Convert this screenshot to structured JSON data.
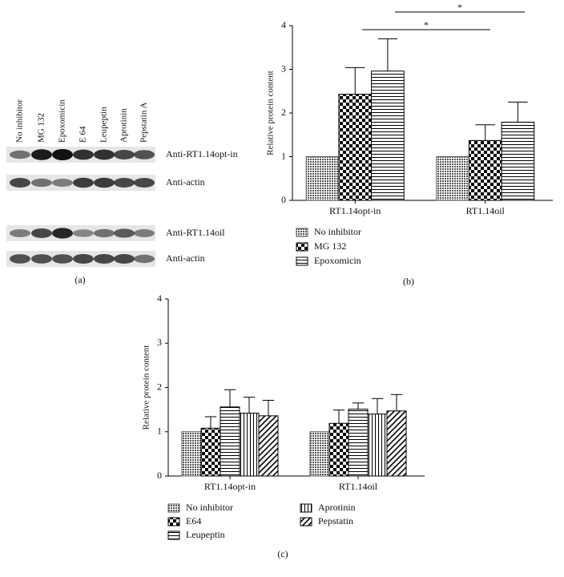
{
  "blot": {
    "lanes": [
      "No inhibitor",
      "MG 132",
      "Epoxomicin",
      "E 64",
      "Leupeptin",
      "Aprotinin",
      "Pepstatin A"
    ],
    "rows": [
      "Anti-RT1.14opt-in",
      "Anti-actin",
      "Anti-RT1.14oil",
      "Anti-actin"
    ],
    "caption": "(a)"
  },
  "chart_data": [
    {
      "type": "bar",
      "ylabel": "Relative protein content",
      "categories": [
        "RT1.14opt-in",
        "RT1.14oil"
      ],
      "series": [
        {
          "name": "No inhibitor",
          "color": "#555555",
          "pattern": "crosshatch",
          "values": [
            1.0,
            1.0
          ],
          "errors": [
            0,
            0
          ]
        },
        {
          "name": "MG 132",
          "color": "#000000",
          "pattern": "checker",
          "values": [
            2.43,
            1.37
          ],
          "errors": [
            0.61,
            0.36
          ]
        },
        {
          "name": "Epoxomicin",
          "color": "#000000",
          "pattern": "horizontal",
          "values": [
            2.96,
            1.79
          ],
          "errors": [
            0.74,
            0.46
          ]
        }
      ],
      "ylim": [
        0,
        4
      ],
      "yticks": [
        0,
        1,
        2,
        3,
        4
      ],
      "annotations": [
        {
          "label": "*"
        },
        {
          "label": "*"
        }
      ],
      "caption": "(b)"
    },
    {
      "type": "bar",
      "ylabel": "Relative protein content",
      "categories": [
        "RT1.14opt-in",
        "RT1.14oil"
      ],
      "series": [
        {
          "name": "No inhibitor",
          "color": "#555555",
          "pattern": "crosshatch",
          "values": [
            1.0,
            1.0
          ],
          "errors": [
            0,
            0
          ]
        },
        {
          "name": "E64",
          "color": "#000000",
          "pattern": "checker",
          "values": [
            1.08,
            1.19
          ],
          "errors": [
            0.26,
            0.3
          ]
        },
        {
          "name": "Leupeptin",
          "color": "#000000",
          "pattern": "horizontal",
          "values": [
            1.56,
            1.51
          ],
          "errors": [
            0.39,
            0.14
          ]
        },
        {
          "name": "Aprotinin",
          "color": "#000000",
          "pattern": "vertical",
          "values": [
            1.42,
            1.4
          ],
          "errors": [
            0.36,
            0.35
          ]
        },
        {
          "name": "Pepstatin",
          "color": "#000000",
          "pattern": "diagonal",
          "values": [
            1.36,
            1.47
          ],
          "errors": [
            0.35,
            0.37
          ]
        }
      ],
      "ylim": [
        0,
        4
      ],
      "yticks": [
        0,
        1,
        2,
        3,
        4
      ],
      "caption": "(c)"
    }
  ]
}
